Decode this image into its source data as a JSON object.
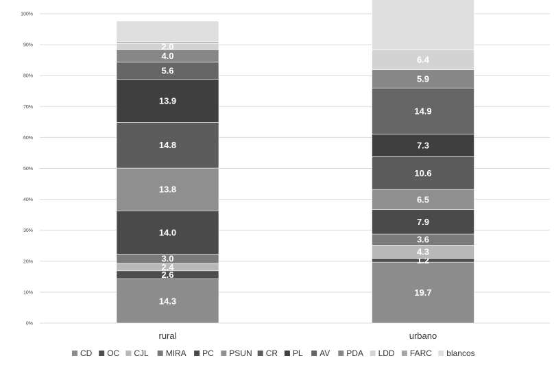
{
  "chart_data": {
    "type": "bar",
    "stacked": true,
    "percent": true,
    "categories": [
      "rural",
      "urbano"
    ],
    "y_ticks": [
      "0%",
      "10%",
      "20%",
      "30%",
      "40%",
      "50%",
      "60%",
      "70%",
      "80%",
      "90%",
      "100%"
    ],
    "ylim": [
      0,
      100
    ],
    "grid": true,
    "legend_position": "bottom",
    "series": [
      {
        "name": "CD",
        "color": "#8c8c8c",
        "values": [
          14.3,
          19.7
        ],
        "labels": [
          "14.3",
          "19.7"
        ]
      },
      {
        "name": "OC",
        "color": "#4d4d4d",
        "values": [
          2.6,
          1.2
        ],
        "labels": [
          "2.6",
          "1.2"
        ]
      },
      {
        "name": "CJL",
        "color": "#b8b8b8",
        "values": [
          2.4,
          4.3
        ],
        "labels": [
          "2.4",
          "4.3"
        ]
      },
      {
        "name": "MIRA",
        "color": "#7a7a7a",
        "values": [
          3.0,
          3.6
        ],
        "labels": [
          "3.0",
          "3.6"
        ]
      },
      {
        "name": "PC",
        "color": "#4a4a4a",
        "values": [
          14.0,
          7.9
        ],
        "labels": [
          "14.0",
          "7.9"
        ]
      },
      {
        "name": "PSUN",
        "color": "#8f8f8f",
        "values": [
          13.8,
          6.5
        ],
        "labels": [
          "13.8",
          "6.5"
        ]
      },
      {
        "name": "CR",
        "color": "#5c5c5c",
        "values": [
          14.8,
          10.6
        ],
        "labels": [
          "14.8",
          "10.6"
        ]
      },
      {
        "name": "PL",
        "color": "#3f3f3f",
        "values": [
          13.9,
          7.3
        ],
        "labels": [
          "13.9",
          "7.3"
        ]
      },
      {
        "name": "AV",
        "color": "#666666",
        "values": [
          5.6,
          14.9
        ],
        "labels": [
          "5.6",
          "14.9"
        ]
      },
      {
        "name": "PDA",
        "color": "#878787",
        "values": [
          4.0,
          5.9
        ],
        "labels": [
          "4.0",
          "5.9"
        ]
      },
      {
        "name": "LDD",
        "color": "#d3d3d3",
        "values": [
          2.0,
          6.4
        ],
        "labels": [
          "2.0",
          "6.4"
        ]
      },
      {
        "name": "FARC",
        "color": "#a6a6a6",
        "values": [
          0.5,
          0.0
        ],
        "labels": [
          "",
          ""
        ]
      },
      {
        "name": "blancos",
        "color": "#dedede",
        "values": [
          6.7,
          16.7
        ],
        "labels": [
          "",
          ""
        ]
      }
    ]
  }
}
